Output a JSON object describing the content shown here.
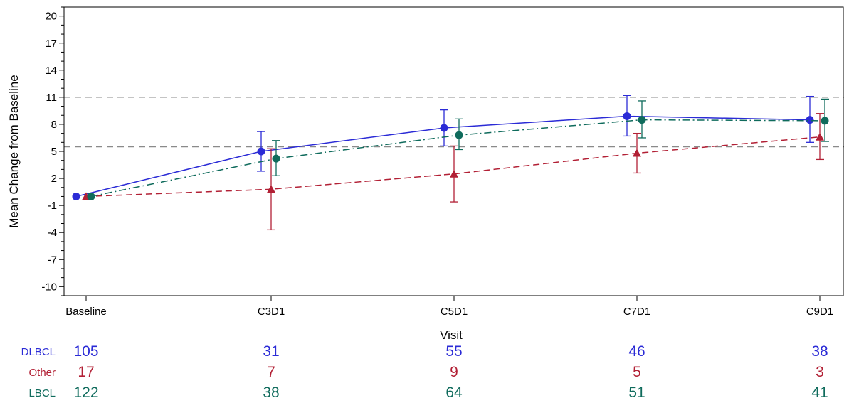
{
  "chart_data": {
    "type": "line",
    "xlabel": "Visit",
    "ylabel": "Mean Change from Baseline",
    "categories": [
      "Baseline",
      "C3D1",
      "C5D1",
      "C7D1",
      "C9D1"
    ],
    "ylim": [
      -11,
      21
    ],
    "yticks": [
      20,
      17,
      14,
      11,
      8,
      5,
      2,
      -1,
      -4,
      -7,
      -10
    ],
    "reference_lines": [
      11,
      5.5
    ],
    "series": [
      {
        "name": "DLBCL",
        "color": "#2b2bd6",
        "marker": "circle",
        "line_style": "solid",
        "values": [
          0,
          5.0,
          7.6,
          8.9,
          8.5
        ],
        "lower": [
          0,
          2.8,
          5.6,
          6.7,
          6.0
        ],
        "upper": [
          0,
          7.2,
          9.6,
          11.2,
          11.1
        ],
        "counts": [
          "105",
          "31",
          "55",
          "46",
          "38"
        ]
      },
      {
        "name": "Other",
        "color": "#b22035",
        "marker": "triangle",
        "line_style": "dashed",
        "values": [
          0,
          0.8,
          2.5,
          4.8,
          6.6
        ],
        "lower": [
          0,
          -3.7,
          -0.6,
          2.6,
          4.1
        ],
        "upper": [
          0,
          5.3,
          5.6,
          7.0,
          9.2
        ],
        "counts": [
          "17",
          "7",
          "9",
          "5",
          "3"
        ]
      },
      {
        "name": "LBCL",
        "color": "#0f6b5c",
        "marker": "circle",
        "line_style": "dashdot",
        "values": [
          0,
          4.2,
          6.8,
          8.5,
          8.4
        ],
        "lower": [
          0,
          2.3,
          5.2,
          6.5,
          6.1
        ],
        "upper": [
          0,
          6.2,
          8.6,
          10.6,
          10.8
        ],
        "counts": [
          "122",
          "38",
          "64",
          "51",
          "41"
        ]
      }
    ]
  }
}
